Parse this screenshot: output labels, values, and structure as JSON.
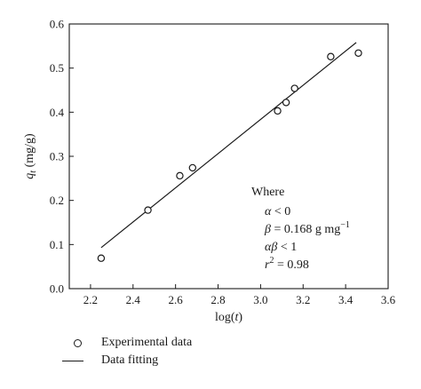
{
  "chart_data": {
    "type": "scatter",
    "xlabel_main": "log(",
    "xlabel_var": "t",
    "xlabel_close": ")",
    "ylabel_var": "q",
    "ylabel_sub": "t",
    "ylabel_unit": " (mg/g)",
    "xlim": [
      2.1,
      3.6
    ],
    "ylim": [
      0,
      0.6
    ],
    "xticks": [
      2.2,
      2.4,
      2.6,
      2.8,
      3.0,
      3.2,
      3.4,
      3.6
    ],
    "yticks": [
      0,
      0.1,
      0.2,
      0.3,
      0.4,
      0.5,
      0.6
    ],
    "xtick_labels": [
      "2.2",
      "2.4",
      "2.6",
      "2.8",
      "3.0",
      "3.2",
      "3.4",
      "3.6"
    ],
    "ytick_labels": [
      "0.0",
      "0.1",
      "0.2",
      "0.3",
      "0.4",
      "0.5",
      "0.6"
    ],
    "series": [
      {
        "name": "Experimental data",
        "kind": "scatter",
        "x": [
          2.25,
          2.47,
          2.62,
          2.68,
          3.08,
          3.12,
          3.16,
          3.33,
          3.46
        ],
        "y": [
          0.069,
          0.178,
          0.256,
          0.274,
          0.403,
          0.422,
          0.454,
          0.526,
          0.534
        ]
      },
      {
        "name": "Data fitting",
        "kind": "line",
        "x": [
          2.25,
          3.45
        ],
        "y": [
          0.093,
          0.558
        ]
      }
    ],
    "annotation": {
      "title": "Where",
      "alpha_sym": "α",
      "alpha_rel": " < 0",
      "beta_sym": "β",
      "beta_rel": " = 0.168 g mg",
      "beta_exp": "−1",
      "ab_sym": "αβ",
      "ab_rel": " < 1",
      "r_sym": "r",
      "r_exp": "2",
      "r_rel": " = 0.98"
    },
    "legend_position": "bottom-left",
    "grid": false
  }
}
